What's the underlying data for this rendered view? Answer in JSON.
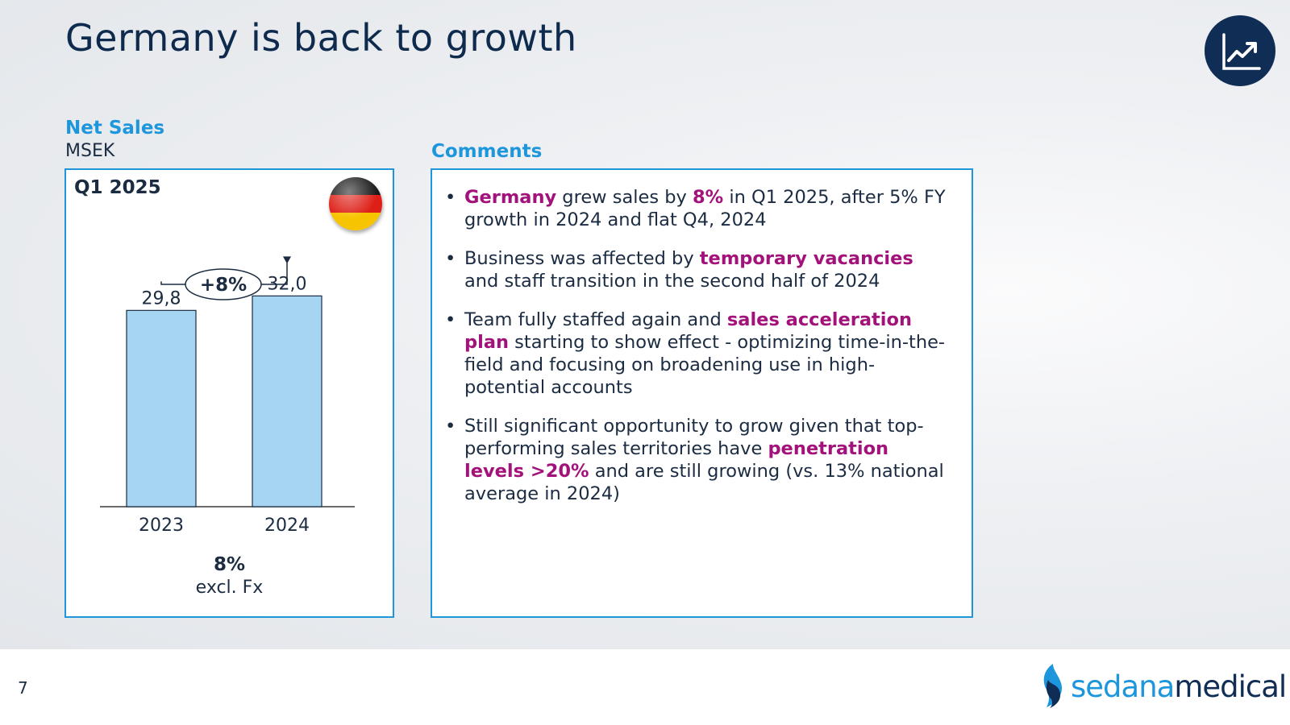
{
  "slide": {
    "title": "Germany is back to growth",
    "page_number": "7",
    "trend_icon": "line-chart-trend-icon",
    "colors": {
      "navy": "#0f2d55",
      "accent_blue": "#1e96dc",
      "highlight": "#a3127b",
      "bar_fill": "#a6d5f2"
    }
  },
  "net_sales": {
    "heading": "Net Sales",
    "unit": "MSEK",
    "period": "Q1 2025",
    "flag_icon": "germany-flag-icon",
    "growth_callout": "+8%",
    "footnote_value": "8%",
    "footnote_label": "excl. Fx"
  },
  "chart_data": {
    "type": "bar",
    "categories": [
      "2023",
      "2024"
    ],
    "values": [
      29.8,
      32.0
    ],
    "value_labels": [
      "29,8",
      "32,0"
    ],
    "title": "",
    "xlabel": "",
    "ylabel": "",
    "ylim": [
      0,
      34
    ],
    "grid": false,
    "annotation": "+8%"
  },
  "comments": {
    "heading": "Comments",
    "bullet_marker": "•",
    "bullets": [
      {
        "parts": [
          {
            "text": "Germany",
            "hl": true
          },
          {
            "text": " grew sales by "
          },
          {
            "text": "8%",
            "hl": true
          },
          {
            "text": " in Q1 2025, after 5% FY growth in 2024 and flat Q4, 2024"
          }
        ]
      },
      {
        "parts": [
          {
            "text": "Business was affected by "
          },
          {
            "text": "temporary vacancies",
            "hl": true
          },
          {
            "text": " and staff transition in the second half of 2024"
          }
        ]
      },
      {
        "parts": [
          {
            "text": "Team fully staffed again and "
          },
          {
            "text": "sales acceleration plan",
            "hl": true
          },
          {
            "text": " starting to show effect - optimizing time-in-the-field and focusing on broadening use in high-potential accounts"
          }
        ]
      },
      {
        "parts": [
          {
            "text": "Still significant opportunity to grow given that top-performing sales territories have "
          },
          {
            "text": "penetration levels >20%",
            "hl": true
          },
          {
            "text": " and are still growing (vs. 13% national average in 2024)"
          }
        ]
      }
    ]
  },
  "brand": {
    "name_part1": "sedana",
    "name_part2": "medical"
  }
}
